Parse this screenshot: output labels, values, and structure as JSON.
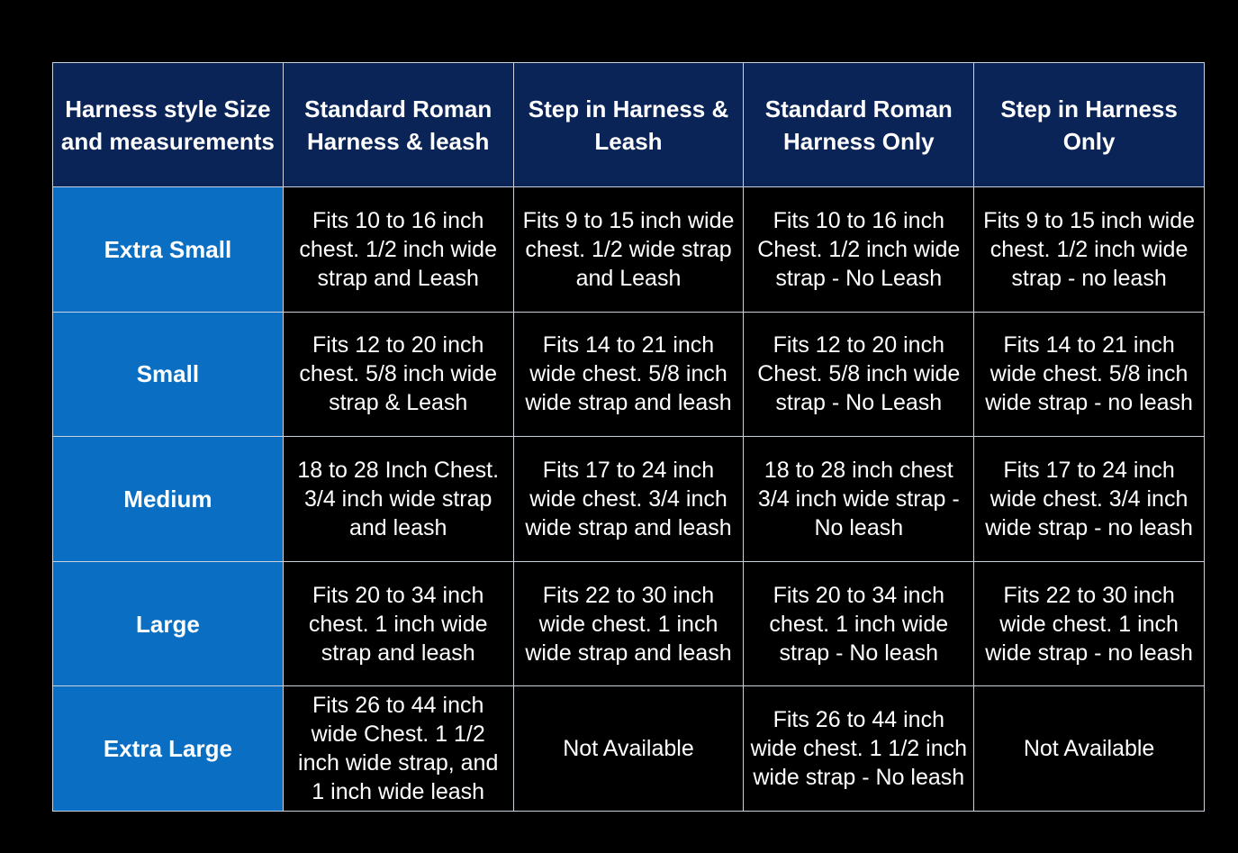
{
  "table": {
    "headers": [
      "Harness style Size and measurements",
      "Standard Roman Harness & leash",
      "Step in Harness & Leash",
      "Standard Roman Harness Only",
      "Step in Harness Only"
    ],
    "rows": [
      {
        "size": "Extra Small",
        "cells": [
          "Fits 10 to 16 inch chest. 1/2 inch wide strap and Leash",
          "Fits 9 to 15 inch wide chest. 1/2 wide strap and Leash",
          "Fits 10 to 16 inch Chest. 1/2 inch wide strap - No Leash",
          "Fits 9 to 15 inch wide chest. 1/2 inch wide strap - no leash"
        ]
      },
      {
        "size": "Small",
        "cells": [
          "Fits 12 to 20 inch chest. 5/8 inch wide strap & Leash",
          "Fits 14 to 21 inch wide chest. 5/8 inch wide strap and leash",
          "Fits 12 to 20 inch Chest. 5/8 inch wide strap - No Leash",
          "Fits 14 to 21 inch wide chest. 5/8 inch wide strap - no leash"
        ]
      },
      {
        "size": "Medium",
        "cells": [
          "18 to 28 Inch Chest. 3/4 inch wide strap and leash",
          "Fits 17 to 24 inch wide chest. 3/4 inch wide strap and leash",
          "18 to 28 inch chest 3/4 inch wide strap - No leash",
          "Fits 17 to 24 inch wide chest. 3/4 inch wide strap - no leash"
        ]
      },
      {
        "size": "Large",
        "cells": [
          "Fits 20 to 34 inch chest. 1 inch wide strap and leash",
          "Fits 22 to 30 inch wide chest. 1 inch wide strap and leash",
          "Fits 20 to 34 inch chest. 1 inch wide strap - No leash",
          "Fits 22 to 30 inch wide chest. 1 inch wide strap - no leash"
        ]
      },
      {
        "size": "Extra Large",
        "cells": [
          "Fits 26 to 44 inch wide Chest. 1 1/2 inch wide strap, and 1 inch wide leash",
          "Not Available",
          "Fits 26 to 44 inch wide chest. 1 1/2 inch wide strap - No leash",
          "Not Available"
        ]
      }
    ],
    "colors": {
      "header": "#0a2457",
      "size_column": "#0a6fc2",
      "body": "#000000",
      "border": "#c9d2de"
    }
  }
}
